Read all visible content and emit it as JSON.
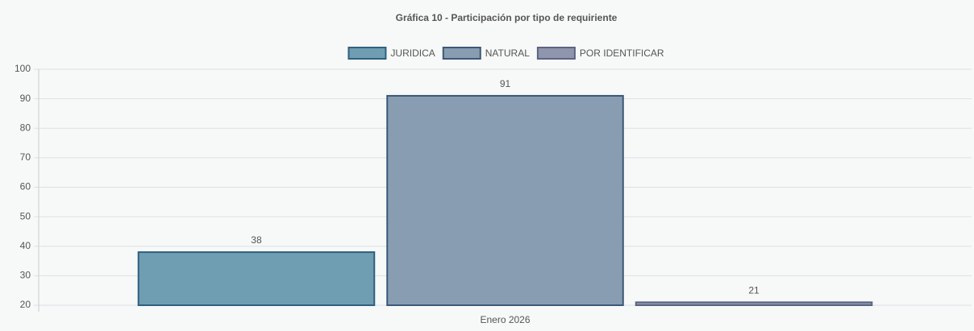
{
  "chart_data": {
    "type": "bar",
    "title": "Gráfica 10 - Participación por tipo de requiriente",
    "categories": [
      "Enero 2026"
    ],
    "series": [
      {
        "name": "JURIDICA",
        "color": "#6f9db2",
        "border": "#2f607f",
        "values": [
          38
        ]
      },
      {
        "name": "NATURAL",
        "color": "#889db2",
        "border": "#3c5877",
        "values": [
          91
        ]
      },
      {
        "name": "POR IDENTIFICAR",
        "color": "#8e95ac",
        "border": "#5c6484",
        "values": [
          21
        ]
      }
    ],
    "ylim": [
      20,
      100
    ],
    "yticks": [
      20,
      30,
      40,
      50,
      60,
      70,
      80,
      90,
      100
    ],
    "grid": true,
    "legend": "top"
  }
}
